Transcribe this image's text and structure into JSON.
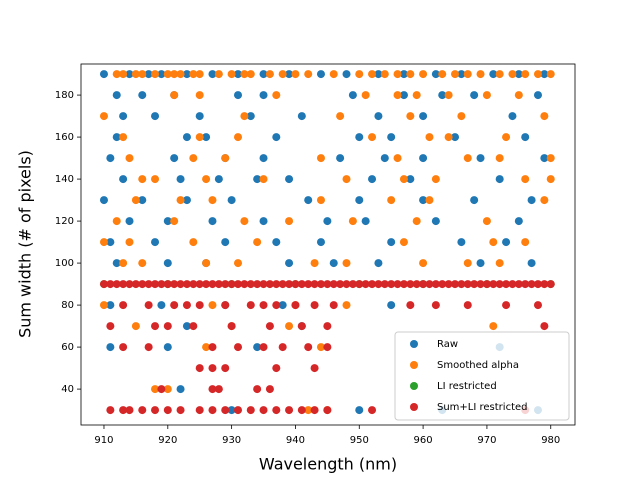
{
  "chart_data": {
    "type": "scatter",
    "x_label": "Wavelength (nm)",
    "y_label": "Sum width (# of pixels)",
    "xlim": [
      906.4,
      983.8
    ],
    "ylim": [
      22.9,
      194.8
    ],
    "xticks": [
      910,
      920,
      930,
      940,
      950,
      960,
      970,
      980
    ],
    "yticks": [
      40,
      60,
      80,
      100,
      120,
      140,
      160,
      180
    ],
    "legend": "lower right",
    "series": [
      {
        "name": "Raw",
        "color": "#1f77b4",
        "x": [
          910,
          914,
          917,
          919,
          923,
          927,
          931,
          935,
          939,
          944,
          948,
          953,
          957,
          962,
          966,
          971,
          975,
          979,
          912,
          916,
          921,
          931,
          935,
          949,
          957,
          963,
          968,
          978,
          913,
          918,
          925,
          933,
          941,
          953,
          960,
          974,
          912,
          923,
          926,
          937,
          950,
          955,
          965,
          976,
          911,
          921,
          929,
          935,
          947,
          954,
          960,
          969,
          979,
          913,
          922,
          928,
          934,
          939,
          952,
          958,
          972,
          910,
          916,
          923,
          930,
          942,
          950,
          960,
          968,
          977,
          914,
          920,
          927,
          935,
          945,
          951,
          962,
          975,
          911,
          918,
          929,
          937,
          944,
          955,
          966,
          973,
          912,
          920,
          926,
          939,
          946,
          953,
          969,
          977,
          911,
          919,
          929,
          938,
          955,
          923,
          941,
          911,
          920,
          934,
          972,
          922,
          930,
          950,
          963,
          978
        ],
        "values": [
          190,
          190,
          190,
          190,
          190,
          190,
          190,
          190,
          190,
          190,
          190,
          190,
          190,
          190,
          190,
          190,
          190,
          190,
          180,
          180,
          180,
          180,
          180,
          180,
          180,
          180,
          180,
          180,
          170,
          170,
          170,
          170,
          170,
          170,
          170,
          170,
          160,
          160,
          160,
          160,
          160,
          160,
          160,
          160,
          150,
          150,
          150,
          150,
          150,
          150,
          150,
          150,
          150,
          140,
          140,
          140,
          140,
          140,
          140,
          140,
          140,
          130,
          130,
          130,
          130,
          130,
          130,
          130,
          130,
          130,
          120,
          120,
          120,
          120,
          120,
          120,
          120,
          120,
          110,
          110,
          110,
          110,
          110,
          110,
          110,
          110,
          100,
          100,
          100,
          100,
          100,
          100,
          100,
          100,
          80,
          80,
          80,
          80,
          80,
          70,
          70,
          60,
          60,
          60,
          60,
          40,
          30,
          30,
          30,
          30
        ]
      },
      {
        "name": "Smoothed alpha",
        "color": "#ff7f0e",
        "x": [
          912,
          913,
          915,
          916,
          918,
          920,
          921,
          922,
          924,
          925,
          928,
          930,
          932,
          933,
          936,
          938,
          940,
          942,
          946,
          950,
          952,
          954,
          956,
          958,
          960,
          963,
          965,
          967,
          969,
          972,
          974,
          976,
          978,
          980,
          921,
          925,
          937,
          951,
          956,
          959,
          964,
          970,
          975,
          910,
          932,
          947,
          958,
          966,
          979,
          913,
          925,
          931,
          952,
          961,
          964,
          973,
          914,
          924,
          929,
          944,
          956,
          967,
          972,
          980,
          916,
          918,
          926,
          935,
          948,
          957,
          962,
          976,
          980,
          915,
          922,
          927,
          944,
          955,
          961,
          979,
          912,
          921,
          932,
          939,
          949,
          959,
          970,
          910,
          914,
          924,
          934,
          957,
          971,
          976,
          913,
          916,
          926,
          931,
          943,
          948,
          960,
          967,
          972,
          910,
          927,
          940,
          948,
          915,
          930,
          939,
          971,
          926,
          944,
          918,
          920,
          942,
          945
        ],
        "values": [
          190,
          190,
          190,
          190,
          190,
          190,
          190,
          190,
          190,
          190,
          190,
          190,
          190,
          190,
          190,
          190,
          190,
          190,
          190,
          190,
          190,
          190,
          190,
          190,
          190,
          190,
          190,
          190,
          190,
          190,
          190,
          190,
          190,
          190,
          180,
          180,
          180,
          180,
          180,
          180,
          180,
          180,
          180,
          170,
          170,
          170,
          170,
          170,
          170,
          160,
          160,
          160,
          160,
          160,
          160,
          160,
          150,
          150,
          150,
          150,
          150,
          150,
          150,
          150,
          140,
          140,
          140,
          140,
          140,
          140,
          140,
          140,
          140,
          130,
          130,
          130,
          130,
          130,
          130,
          130,
          120,
          120,
          120,
          120,
          120,
          120,
          120,
          110,
          110,
          110,
          110,
          110,
          110,
          110,
          100,
          100,
          100,
          100,
          100,
          100,
          100,
          100,
          100,
          80,
          80,
          80,
          80,
          70,
          70,
          70,
          70,
          60,
          60,
          40,
          40,
          30,
          30
        ]
      },
      {
        "name": "LI restricted",
        "color": "#2ca02c",
        "x": [
          910,
          920,
          930,
          940,
          950,
          960,
          970,
          980
        ],
        "values": [
          90,
          90,
          90,
          90,
          90,
          90,
          90,
          90
        ]
      },
      {
        "name": "Sum+LI restricted",
        "color": "#d62728",
        "x": [
          910,
          911,
          912,
          913,
          914,
          915,
          916,
          917,
          918,
          919,
          920,
          921,
          922,
          923,
          924,
          925,
          926,
          927,
          928,
          929,
          930,
          931,
          932,
          933,
          934,
          935,
          936,
          937,
          938,
          939,
          940,
          941,
          942,
          943,
          944,
          945,
          946,
          947,
          948,
          949,
          950,
          951,
          952,
          953,
          954,
          955,
          956,
          957,
          958,
          959,
          960,
          961,
          962,
          963,
          964,
          965,
          966,
          967,
          968,
          969,
          970,
          971,
          972,
          973,
          974,
          975,
          976,
          977,
          978,
          979,
          980,
          911,
          913,
          914,
          916,
          918,
          920,
          922,
          925,
          927,
          929,
          931,
          933,
          935,
          937,
          939,
          941,
          943,
          945,
          952,
          976,
          913,
          917,
          921,
          923,
          925,
          929,
          933,
          935,
          937,
          940,
          943,
          946,
          958,
          962,
          967,
          973,
          978,
          911,
          918,
          920,
          924,
          930,
          936,
          941,
          945,
          979,
          913,
          917,
          927,
          931,
          935,
          938,
          942,
          945,
          925,
          927,
          929,
          937,
          943,
          919,
          927,
          928,
          934,
          936
        ],
        "values": [
          90,
          90,
          90,
          90,
          90,
          90,
          90,
          90,
          90,
          90,
          90,
          90,
          90,
          90,
          90,
          90,
          90,
          90,
          90,
          90,
          90,
          90,
          90,
          90,
          90,
          90,
          90,
          90,
          90,
          90,
          90,
          90,
          90,
          90,
          90,
          90,
          90,
          90,
          90,
          90,
          90,
          90,
          90,
          90,
          90,
          90,
          90,
          90,
          90,
          90,
          90,
          90,
          90,
          90,
          90,
          90,
          90,
          90,
          90,
          90,
          90,
          90,
          90,
          90,
          90,
          90,
          90,
          90,
          90,
          90,
          90,
          30,
          30,
          30,
          30,
          30,
          30,
          30,
          30,
          30,
          30,
          30,
          30,
          30,
          30,
          30,
          30,
          30,
          30,
          30,
          30,
          80,
          80,
          80,
          80,
          80,
          80,
          80,
          80,
          80,
          80,
          80,
          80,
          80,
          80,
          80,
          80,
          80,
          70,
          70,
          70,
          70,
          70,
          70,
          70,
          70,
          70,
          60,
          60,
          60,
          60,
          60,
          60,
          60,
          60,
          50,
          50,
          50,
          50,
          50,
          40,
          40,
          40,
          40,
          40
        ]
      }
    ]
  }
}
